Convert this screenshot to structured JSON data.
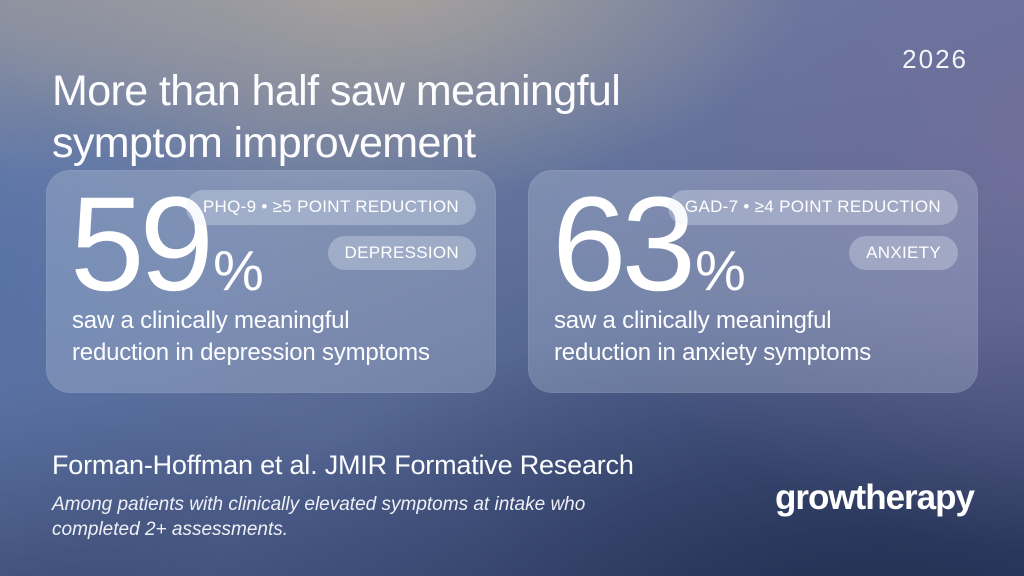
{
  "header": {
    "title_line1": "More than half saw meaningful",
    "title_line2": "symptom improvement",
    "year": "2026"
  },
  "cards": [
    {
      "value": "59",
      "percent_sign": "%",
      "measure_badge": "PHQ-9 • ≥5 POINT REDUCTION",
      "condition_badge": "DEPRESSION",
      "description_line1": "saw a clinically meaningful",
      "description_line2": "reduction in depression symptoms"
    },
    {
      "value": "63",
      "percent_sign": "%",
      "measure_badge": "GAD-7 • ≥4 POINT REDUCTION",
      "condition_badge": "ANXIETY",
      "description_line1": "saw a clinically meaningful",
      "description_line2": "reduction in anxiety symptoms"
    }
  ],
  "footer": {
    "source": "Forman-Hoffman et al. JMIR Formative Research",
    "note_line1": "Among patients with clinically elevated symptoms at intake who",
    "note_line2": "completed 2+ assessments.",
    "logo": "growtherapy"
  },
  "colors": {
    "text": "#ffffff",
    "card_fill": "rgba(208,219,236,0.26)",
    "badge_fill": "rgba(230,237,248,0.32)",
    "bg_top_warm": "#b2a89b",
    "bg_blue": "#4c6daa",
    "bg_purple": "#76729c",
    "bg_dark_navy": "#2c3a5e"
  }
}
